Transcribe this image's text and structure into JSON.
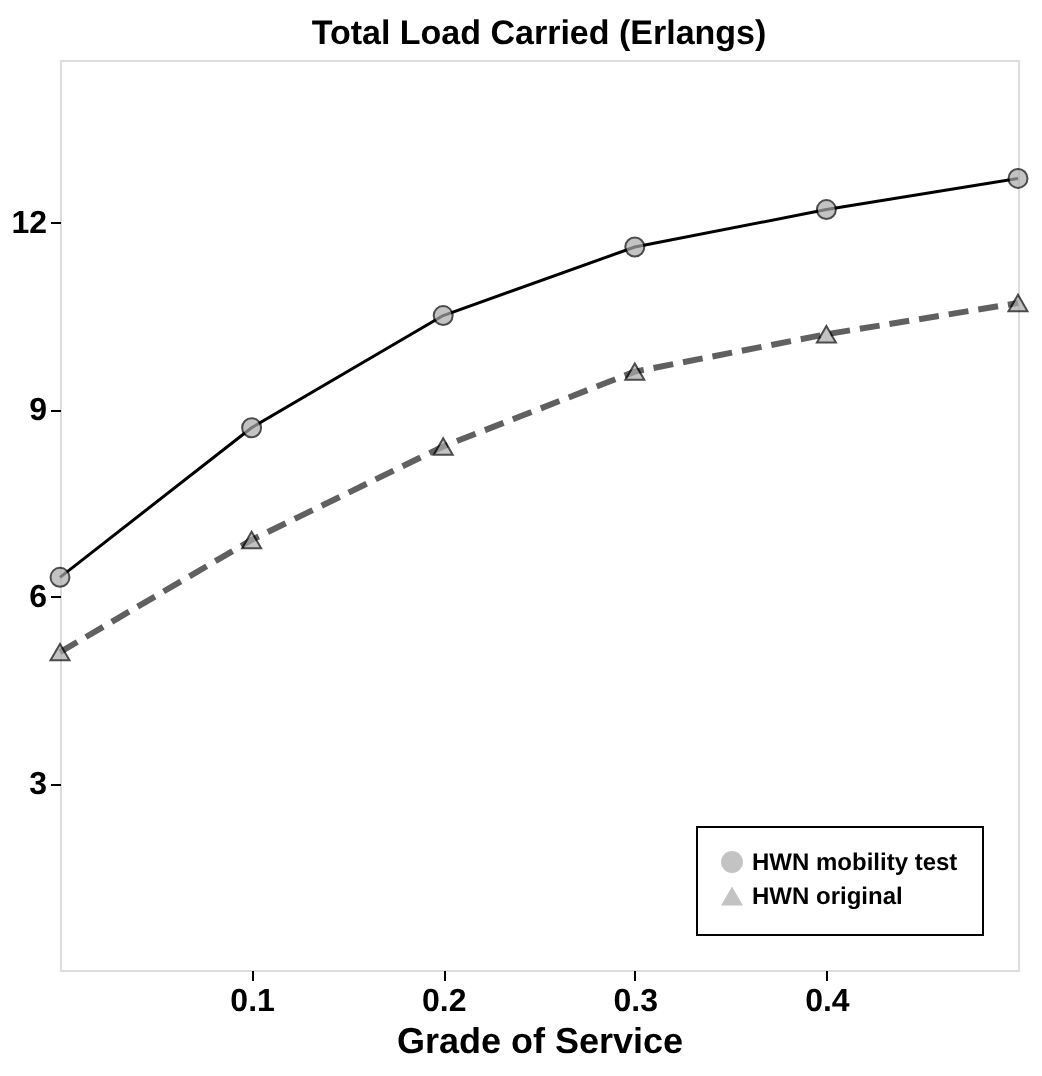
{
  "chart_data": {
    "type": "line",
    "title": "Total Load Carried (Erlangs)",
    "xlabel": "Grade of Service",
    "x": [
      0,
      0.1,
      0.2,
      0.3,
      0.4,
      0.5
    ],
    "series": [
      {
        "name": "HWN mobility test",
        "color": "#000000",
        "marker": "circle",
        "line_style": "solid",
        "values": [
          6.3,
          8.7,
          10.5,
          11.6,
          12.2,
          12.7
        ]
      },
      {
        "name": "HWN original",
        "color": "#606060",
        "marker": "triangle",
        "line_style": "dashed",
        "values": [
          5.1,
          6.9,
          8.4,
          9.6,
          10.2,
          10.7
        ]
      }
    ],
    "xlim": [
      0,
      0.5
    ],
    "xticks": [
      0.1,
      0.2,
      0.3,
      0.4
    ],
    "ylim": [
      0,
      14.6
    ],
    "yticks": [
      3,
      6,
      9,
      12
    ],
    "grid": false,
    "legend": "bottom right"
  }
}
